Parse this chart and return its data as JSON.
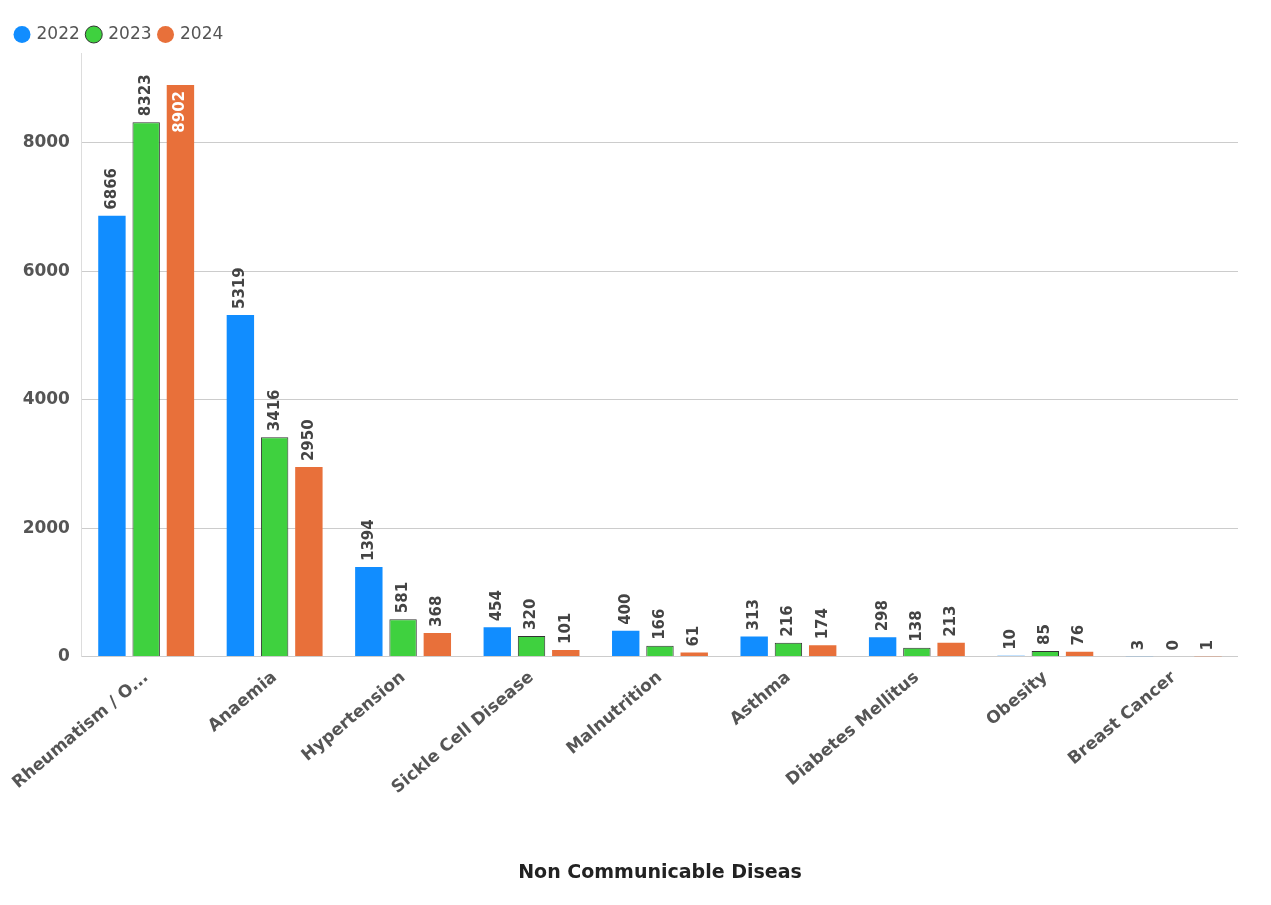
{
  "chart_data": {
    "type": "bar",
    "xlabel": "Non Communicable Diseas",
    "categories": [
      "Rheumatism / O...",
      "Anaemia",
      "Hypertension",
      "Sickle Cell Disease",
      "Malnutrition",
      "Asthma",
      "Diabetes Mellitus",
      "Obesity",
      "Breast Cancer"
    ],
    "series": [
      {
        "name": "2022",
        "color": "#118dff",
        "values": [
          6866,
          5319,
          1394,
          454,
          400,
          313,
          298,
          10,
          3
        ]
      },
      {
        "name": "2023",
        "color": "#3fd13f",
        "values": [
          8323,
          3416,
          581,
          320,
          166,
          216,
          138,
          85,
          0
        ]
      },
      {
        "name": "2024",
        "color": "#e8703a",
        "values": [
          8902,
          2950,
          368,
          101,
          61,
          174,
          213,
          76,
          1
        ]
      }
    ],
    "ylim": [
      0,
      9400
    ],
    "yticks": [
      0,
      2000,
      4000,
      6000,
      8000
    ],
    "grid": "y",
    "legend": "top left",
    "data_labels": true
  }
}
